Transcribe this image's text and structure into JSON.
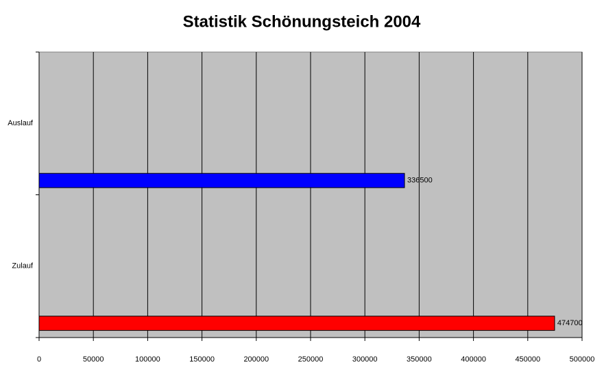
{
  "chart_data": {
    "type": "hbar",
    "title": "Statistik Schönungsteich 2004",
    "categories": [
      "Auslauf",
      "Zulauf"
    ],
    "values": [
      336500,
      474700
    ],
    "colors": [
      "#0000ff",
      "#ff0000"
    ],
    "xlim": [
      0,
      500000
    ],
    "xticks": [
      0,
      50000,
      100000,
      150000,
      200000,
      250000,
      300000,
      350000,
      400000,
      450000,
      500000
    ],
    "grid": true,
    "value_labels": [
      "336500",
      "474700"
    ]
  }
}
